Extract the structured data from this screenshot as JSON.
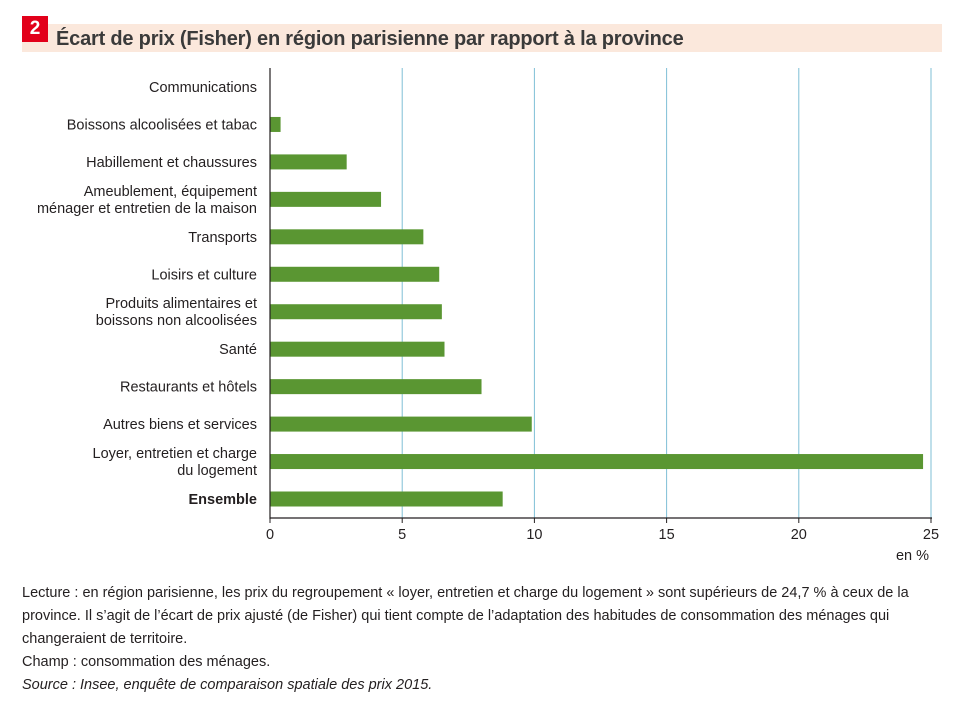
{
  "figure": {
    "number": "2",
    "title": "Écart de prix (Fisher) en région parisienne par rapport à la province"
  },
  "chart_data": {
    "type": "bar",
    "orientation": "horizontal",
    "categories": [
      [
        "Communications"
      ],
      [
        "Boissons alcoolisées et tabac"
      ],
      [
        "Habillement et chaussures"
      ],
      [
        "Ameublement, équipement",
        "ménager et entretien de la maison"
      ],
      [
        "Transports"
      ],
      [
        "Loisirs et culture"
      ],
      [
        "Produits alimentaires et",
        "boissons non alcoolisées"
      ],
      [
        "Santé"
      ],
      [
        "Restaurants et hôtels"
      ],
      [
        "Autres biens et services"
      ],
      [
        "Loyer, entretien et charge",
        "du logement"
      ],
      [
        "Ensemble"
      ]
    ],
    "bold_categories": [
      11
    ],
    "values": [
      0,
      0.4,
      2.9,
      4.2,
      5.8,
      6.4,
      6.5,
      6.6,
      8.0,
      9.9,
      24.7,
      8.8
    ],
    "xlim": [
      0,
      25
    ],
    "xticks": [
      0,
      5,
      10,
      15,
      20,
      25
    ],
    "xunit": "en %",
    "grid": "vertical",
    "colors": {
      "bar": "#5a9632",
      "grid": "#7fbfd6",
      "axis": "#231f20"
    }
  },
  "notes": {
    "lecture": "Lecture : en région parisienne, les prix du regroupement « loyer, entretien et charge du logement » sont supérieurs de 24,7 % à ceux de la province.  Il s’agit de l’écart de prix ajusté (de Fisher) qui tient compte de l’adaptation des habitudes de consommation des ménages qui changeraient de territoire.",
    "champ": "Champ : consommation des ménages.",
    "source": "Source : Insee, enquête de comparaison spatiale des prix 2015."
  }
}
